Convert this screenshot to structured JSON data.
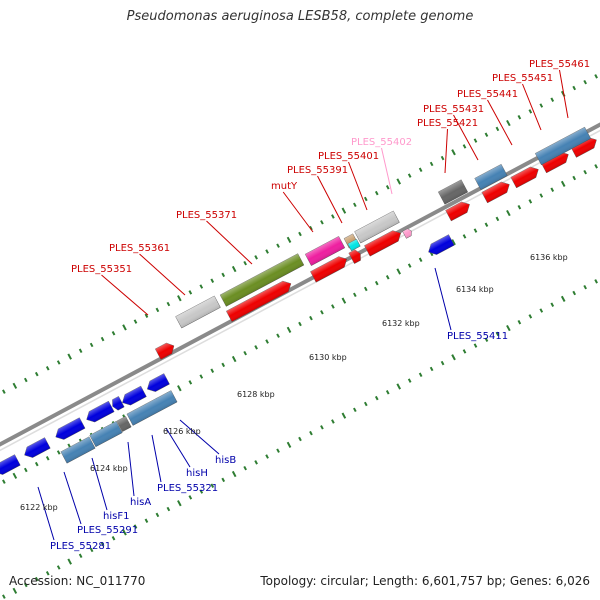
{
  "header": {
    "title": "Pseudomonas aeruginosa LESB58, complete genome"
  },
  "footer": {
    "accession": "Accession: NC_011770",
    "topology": "Topology: circular; Length: 6,601,757 bp; Genes: 6,026"
  },
  "colors": {
    "forward_label": "#cc0000",
    "reverse_label": "#0000aa",
    "pseudo_label": "#ff99cc",
    "tick": "#2e7d32",
    "backbone": "#8a8a8a"
  },
  "scale": [
    {
      "label": "6122 kbp"
    },
    {
      "label": "6124 kbp"
    },
    {
      "label": "6126 kbp"
    },
    {
      "label": "6128 kbp"
    },
    {
      "label": "6130 kbp"
    },
    {
      "label": "6132 kbp"
    },
    {
      "label": "6134 kbp"
    },
    {
      "label": "6136 kbp"
    }
  ],
  "forward_labels": [
    {
      "text": "PLES_55351"
    },
    {
      "text": "PLES_55361"
    },
    {
      "text": "PLES_55371"
    },
    {
      "text": "mutY"
    },
    {
      "text": "PLES_55391"
    },
    {
      "text": "PLES_55401"
    },
    {
      "text": "PLES_55402"
    },
    {
      "text": "PLES_55421"
    },
    {
      "text": "PLES_55431"
    },
    {
      "text": "PLES_55441"
    },
    {
      "text": "PLES_55451"
    },
    {
      "text": "PLES_55461"
    }
  ],
  "reverse_labels": [
    {
      "text": "hisB"
    },
    {
      "text": "hisH"
    },
    {
      "text": "PLES_55321"
    },
    {
      "text": "hisA"
    },
    {
      "text": "hisF1"
    },
    {
      "text": "PLES_55291"
    },
    {
      "text": "PLES_55281"
    },
    {
      "text": "PLES_55411"
    }
  ]
}
